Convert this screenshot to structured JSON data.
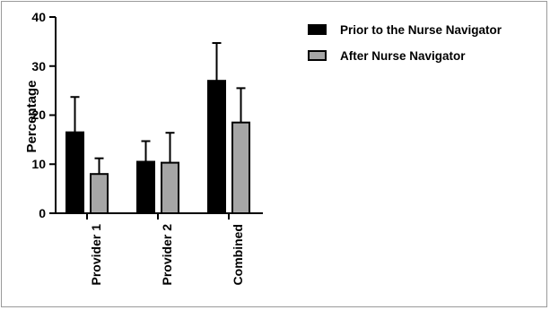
{
  "chart_data": {
    "type": "bar",
    "title": "",
    "xlabel": "",
    "ylabel": "Percentage",
    "ylim": [
      0,
      40
    ],
    "yticks": [
      "0",
      "10",
      "20",
      "30",
      "40"
    ],
    "categories": [
      "Provider 1",
      "Provider 2",
      "Combined"
    ],
    "series": [
      {
        "name": "Prior to the Nurse Navigator",
        "values": [
          16.5,
          10.5,
          27.0
        ],
        "error": [
          7.2,
          4.2,
          7.7
        ],
        "color": "#000000"
      },
      {
        "name": "After Nurse Navigator",
        "values": [
          8.0,
          10.3,
          18.5
        ],
        "error": [
          3.2,
          6.1,
          7.0
        ],
        "color": "#a6a6a6"
      }
    ],
    "error_bars": true,
    "legend_position": "top-right",
    "grid": false
  }
}
